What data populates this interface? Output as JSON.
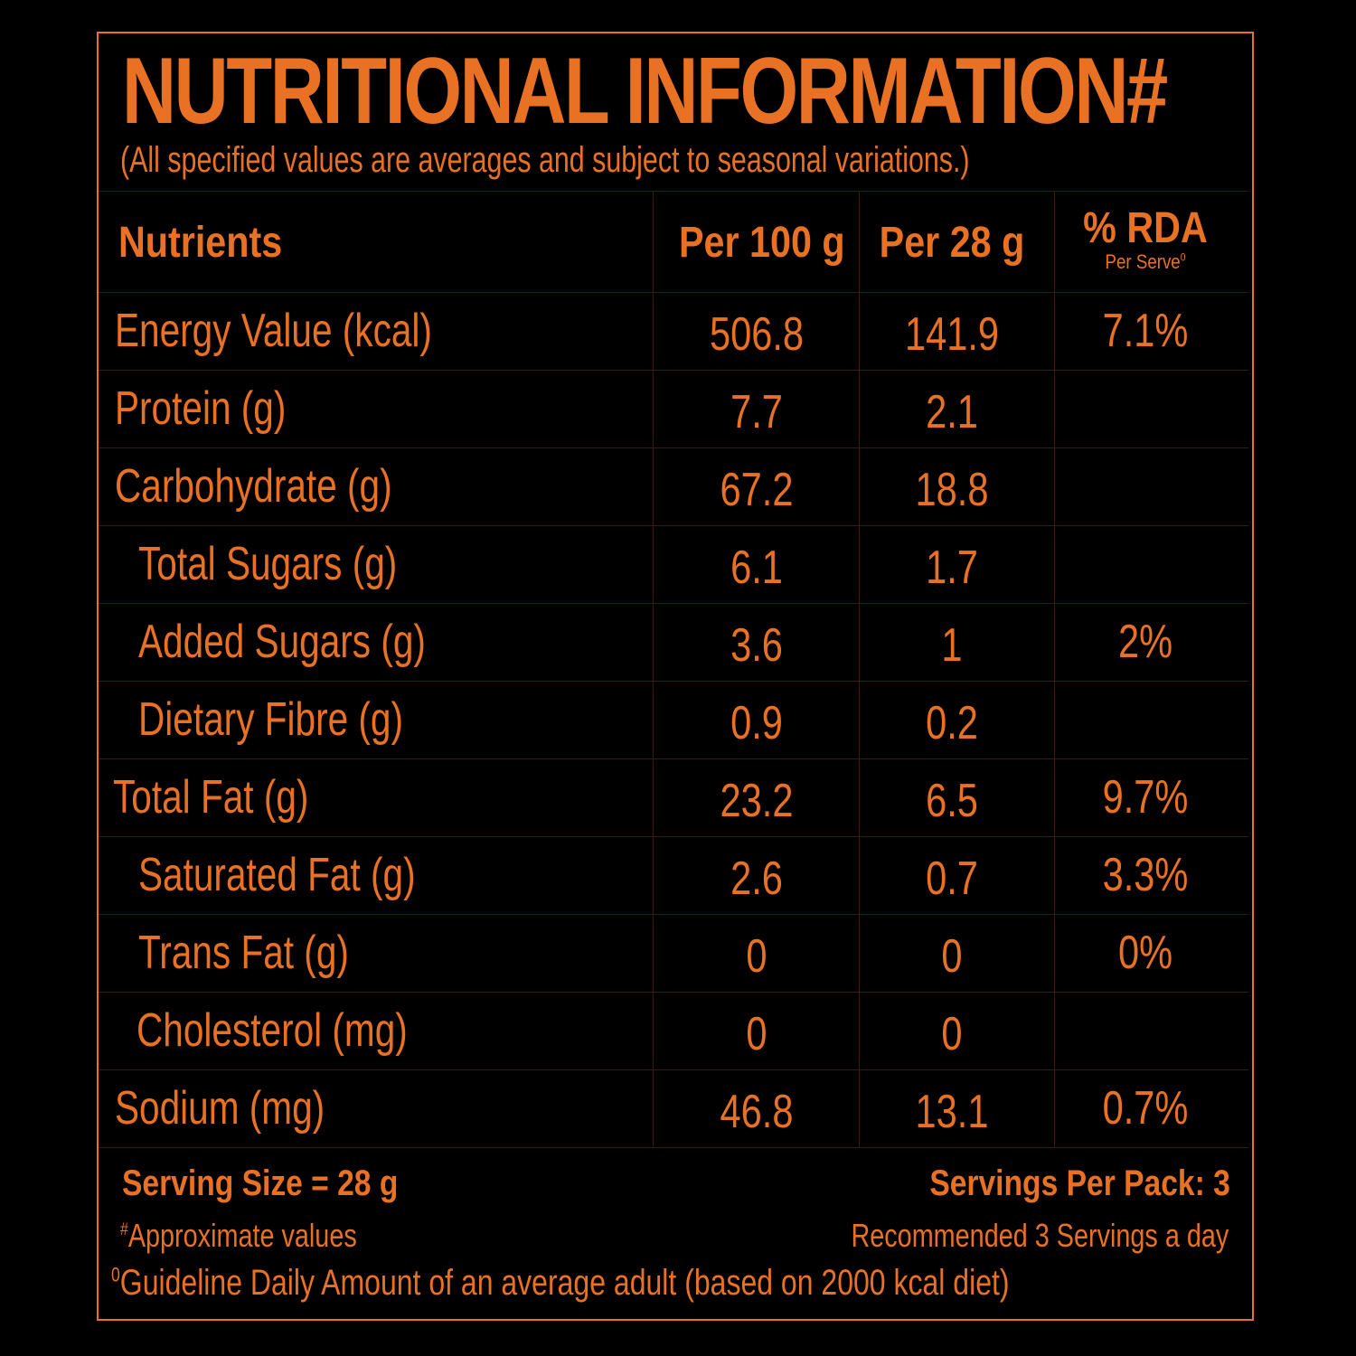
{
  "title": "NUTRITIONAL INFORMATION#",
  "subtitle": "(All specified values are averages and subject to seasonal variations.)",
  "header": {
    "nutrients": "Nutrients",
    "per100": "Per 100 g",
    "per28": "Per 28 g",
    "rda": "% RDA",
    "rda_sub": "Per Serve",
    "rda_sub_sup": "0"
  },
  "rows": [
    {
      "name": "Energy Value (kcal)",
      "per100": "506.8",
      "per28": "141.9",
      "rda": "7.1%"
    },
    {
      "name": "Protein (g)",
      "per100": "7.7",
      "per28": "2.1",
      "rda": ""
    },
    {
      "name": "Carbohydrate (g)",
      "per100": "67.2",
      "per28": "18.8",
      "rda": ""
    },
    {
      "name": "Total Sugars (g)",
      "per100": "6.1",
      "per28": "1.7",
      "rda": ""
    },
    {
      "name": "Added Sugars (g)",
      "per100": "3.6",
      "per28": "1",
      "rda": "2%"
    },
    {
      "name": "Dietary Fibre (g)",
      "per100": "0.9",
      "per28": "0.2",
      "rda": ""
    },
    {
      "name": "Total Fat (g)",
      "per100": "23.2",
      "per28": "6.5",
      "rda": "9.7%"
    },
    {
      "name": "Saturated Fat (g)",
      "per100": "2.6",
      "per28": "0.7",
      "rda": "3.3%"
    },
    {
      "name": "Trans Fat (g)",
      "per100": "0",
      "per28": "0",
      "rda": "0%"
    },
    {
      "name": "Cholesterol (mg)",
      "per100": "0",
      "per28": "0",
      "rda": ""
    },
    {
      "name": "Sodium (mg)",
      "per100": "46.8",
      "per28": "13.1",
      "rda": "0.7%"
    }
  ],
  "footer": {
    "serving_size": "Serving Size = 28 g",
    "servings_per_pack": "Servings Per Pack: 3",
    "approx_sup": "#",
    "approx": "Approximate values",
    "recommended": "Recommended 3 Servings a day",
    "guideline_sup": "0",
    "guideline": "Guideline Daily Amount of an average adult (based on 2000 kcal diet)"
  },
  "colors": {
    "accent": "#e87124",
    "background": "#000000",
    "divider": "#3a1a08"
  }
}
